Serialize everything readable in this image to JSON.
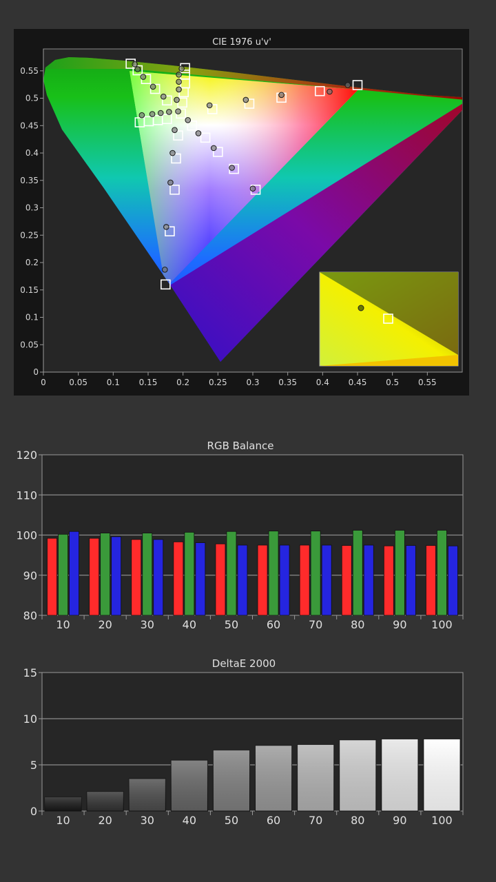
{
  "chart_data": [
    {
      "type": "scatter",
      "title": "CIE 1976 u'v'",
      "xlim": [
        0,
        0.6
      ],
      "ylim": [
        0,
        0.59
      ],
      "x_ticks": [
        "0",
        "0.05",
        "0.1",
        "0.15",
        "0.2",
        "0.25",
        "0.3",
        "0.35",
        "0.4",
        "0.45",
        "0.5",
        "0.55"
      ],
      "y_ticks": [
        "0",
        "0.05",
        "0.1",
        "0.15",
        "0.2",
        "0.25",
        "0.3",
        "0.35",
        "0.4",
        "0.45",
        "0.5",
        "0.55"
      ],
      "series": [
        {
          "marker": "square",
          "points": [
            [
              0.125,
              0.563
            ],
            [
              0.135,
              0.551
            ],
            [
              0.147,
              0.535
            ],
            [
              0.16,
              0.517
            ],
            [
              0.177,
              0.496
            ],
            [
              0.203,
              0.555
            ],
            [
              0.203,
              0.543
            ],
            [
              0.203,
              0.527
            ],
            [
              0.201,
              0.511
            ],
            [
              0.199,
              0.492
            ],
            [
              0.197,
              0.472
            ],
            [
              0.138,
              0.456
            ],
            [
              0.151,
              0.458
            ],
            [
              0.164,
              0.46
            ],
            [
              0.177,
              0.462
            ],
            [
              0.213,
              0.45
            ],
            [
              0.232,
              0.428
            ],
            [
              0.25,
              0.402
            ],
            [
              0.273,
              0.371
            ],
            [
              0.304,
              0.333
            ],
            [
              0.193,
              0.432
            ],
            [
              0.19,
              0.39
            ],
            [
              0.188,
              0.333
            ],
            [
              0.181,
              0.257
            ],
            [
              0.175,
              0.16
            ],
            [
              0.242,
              0.48
            ],
            [
              0.295,
              0.49
            ],
            [
              0.341,
              0.501
            ],
            [
              0.396,
              0.513
            ],
            [
              0.45,
              0.524
            ]
          ]
        },
        {
          "marker": "circle",
          "points": [
            [
              0.131,
              0.562
            ],
            [
              0.135,
              0.553
            ],
            [
              0.143,
              0.539
            ],
            [
              0.157,
              0.521
            ],
            [
              0.172,
              0.503
            ],
            [
              0.198,
              0.554
            ],
            [
              0.194,
              0.543
            ],
            [
              0.194,
              0.53
            ],
            [
              0.194,
              0.516
            ],
            [
              0.191,
              0.497
            ],
            [
              0.193,
              0.476
            ],
            [
              0.141,
              0.469
            ],
            [
              0.156,
              0.471
            ],
            [
              0.168,
              0.473
            ],
            [
              0.18,
              0.475
            ],
            [
              0.207,
              0.46
            ],
            [
              0.222,
              0.436
            ],
            [
              0.244,
              0.409
            ],
            [
              0.27,
              0.373
            ],
            [
              0.3,
              0.335
            ],
            [
              0.188,
              0.442
            ],
            [
              0.185,
              0.4
            ],
            [
              0.182,
              0.346
            ],
            [
              0.176,
              0.265
            ],
            [
              0.174,
              0.187
            ],
            [
              0.238,
              0.487
            ],
            [
              0.29,
              0.497
            ],
            [
              0.341,
              0.506
            ],
            [
              0.41,
              0.512
            ],
            [
              0.436,
              0.524
            ]
          ]
        }
      ]
    },
    {
      "type": "bar",
      "title": "RGB Balance",
      "categories": [
        "10",
        "20",
        "30",
        "40",
        "50",
        "60",
        "70",
        "80",
        "90",
        "100"
      ],
      "ylim": [
        80,
        120
      ],
      "y_ticks": [
        "80",
        "90",
        "100",
        "110",
        "120"
      ],
      "colors": [
        "#ff2b2b",
        "#3a9a3a",
        "#2525e0"
      ],
      "series": [
        {
          "values": [
            99.2,
            99.2,
            98.9,
            98.3,
            97.8,
            97.5,
            97.5,
            97.4,
            97.3,
            97.4
          ]
        },
        {
          "values": [
            100.2,
            100.5,
            100.5,
            100.7,
            100.9,
            101.0,
            101.0,
            101.2,
            101.2,
            101.2
          ]
        },
        {
          "values": [
            100.9,
            99.6,
            98.9,
            98.1,
            97.5,
            97.5,
            97.5,
            97.5,
            97.4,
            97.3
          ]
        }
      ]
    },
    {
      "type": "bar",
      "title": "DeltaE 2000",
      "categories": [
        "10",
        "20",
        "30",
        "40",
        "50",
        "60",
        "70",
        "80",
        "90",
        "100"
      ],
      "ylim": [
        0,
        15
      ],
      "y_ticks": [
        "0",
        "5",
        "10",
        "15"
      ],
      "values": [
        1.5,
        2.1,
        3.5,
        5.5,
        6.6,
        7.1,
        7.2,
        7.7,
        7.8,
        7.8
      ]
    }
  ]
}
